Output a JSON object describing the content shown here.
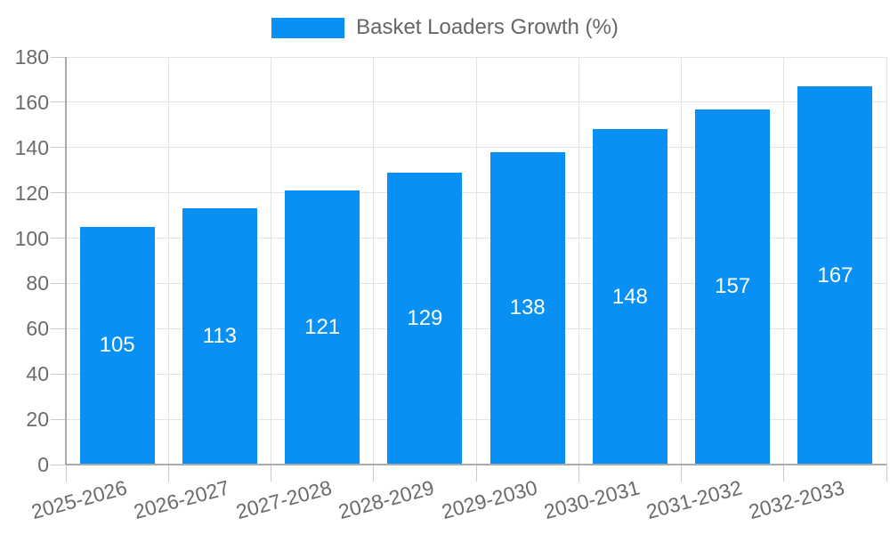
{
  "chart_data": {
    "type": "bar",
    "title": "Basket Loaders Growth (%)",
    "categories": [
      "2025-2026",
      "2026-2027",
      "2027-2028",
      "2028-2029",
      "2029-2030",
      "2030-2031",
      "2031-2032",
      "2032-2033"
    ],
    "values": [
      105,
      113,
      121,
      129,
      138,
      148,
      157,
      167
    ],
    "xlabel": "",
    "ylabel": "",
    "ylim": [
      0,
      180
    ],
    "yticks": [
      0,
      20,
      40,
      60,
      80,
      100,
      120,
      140,
      160,
      180
    ],
    "grid": true,
    "legend_position": "top-center",
    "x_label_rotation_deg": -15,
    "colors": {
      "bar": "#0890F5",
      "value_label": "#FFFFFF",
      "axis_text": "#6B6B6B",
      "legend_text": "#666666",
      "grid_line": "#E3E3E3",
      "axis_line": "#ABABAB",
      "tick_mark": "#C9C9C9",
      "background": "#FFFFFF"
    }
  }
}
